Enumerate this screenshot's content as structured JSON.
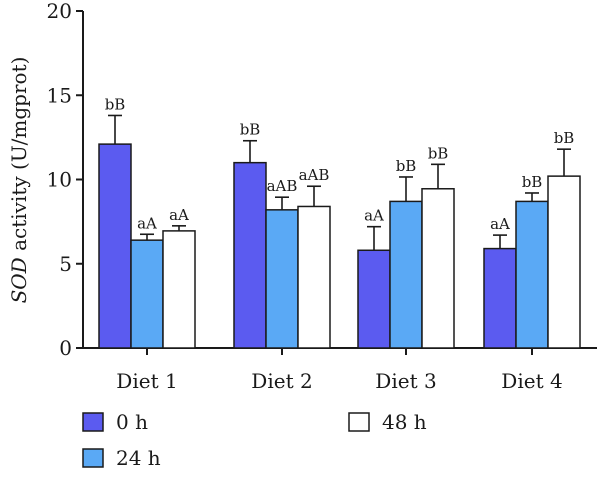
{
  "chart_data": {
    "type": "bar",
    "categories": [
      "Diet 1",
      "Diet 2",
      "Diet 3",
      "Diet 4"
    ],
    "series": [
      {
        "name": "0 h",
        "color": "#5b5bf0",
        "values": [
          12.1,
          11.0,
          5.8,
          5.9
        ],
        "errors": [
          1.7,
          1.3,
          1.4,
          0.8
        ],
        "labels": [
          "bB",
          "bB",
          "aA",
          "aA"
        ]
      },
      {
        "name": "24 h",
        "color": "#5aa9f5",
        "values": [
          6.4,
          8.2,
          8.7,
          8.7
        ],
        "errors": [
          0.35,
          0.75,
          1.45,
          0.5
        ],
        "labels": [
          "aA",
          "aAB",
          "bB",
          "bB"
        ]
      },
      {
        "name": "48 h",
        "color": "#ffffff",
        "values": [
          6.95,
          8.4,
          9.45,
          10.2
        ],
        "errors": [
          0.3,
          1.2,
          1.45,
          1.6
        ],
        "labels": [
          "aA",
          "aAB",
          "bB",
          "bB"
        ]
      }
    ],
    "ylabel_italic": "SOD",
    "ylabel_rest": " activity (U/mgprot)",
    "ylim": [
      0,
      20
    ],
    "yticks": [
      "0",
      "5",
      "10",
      "15",
      "20"
    ],
    "grid": false,
    "legend_position": "bottom"
  }
}
